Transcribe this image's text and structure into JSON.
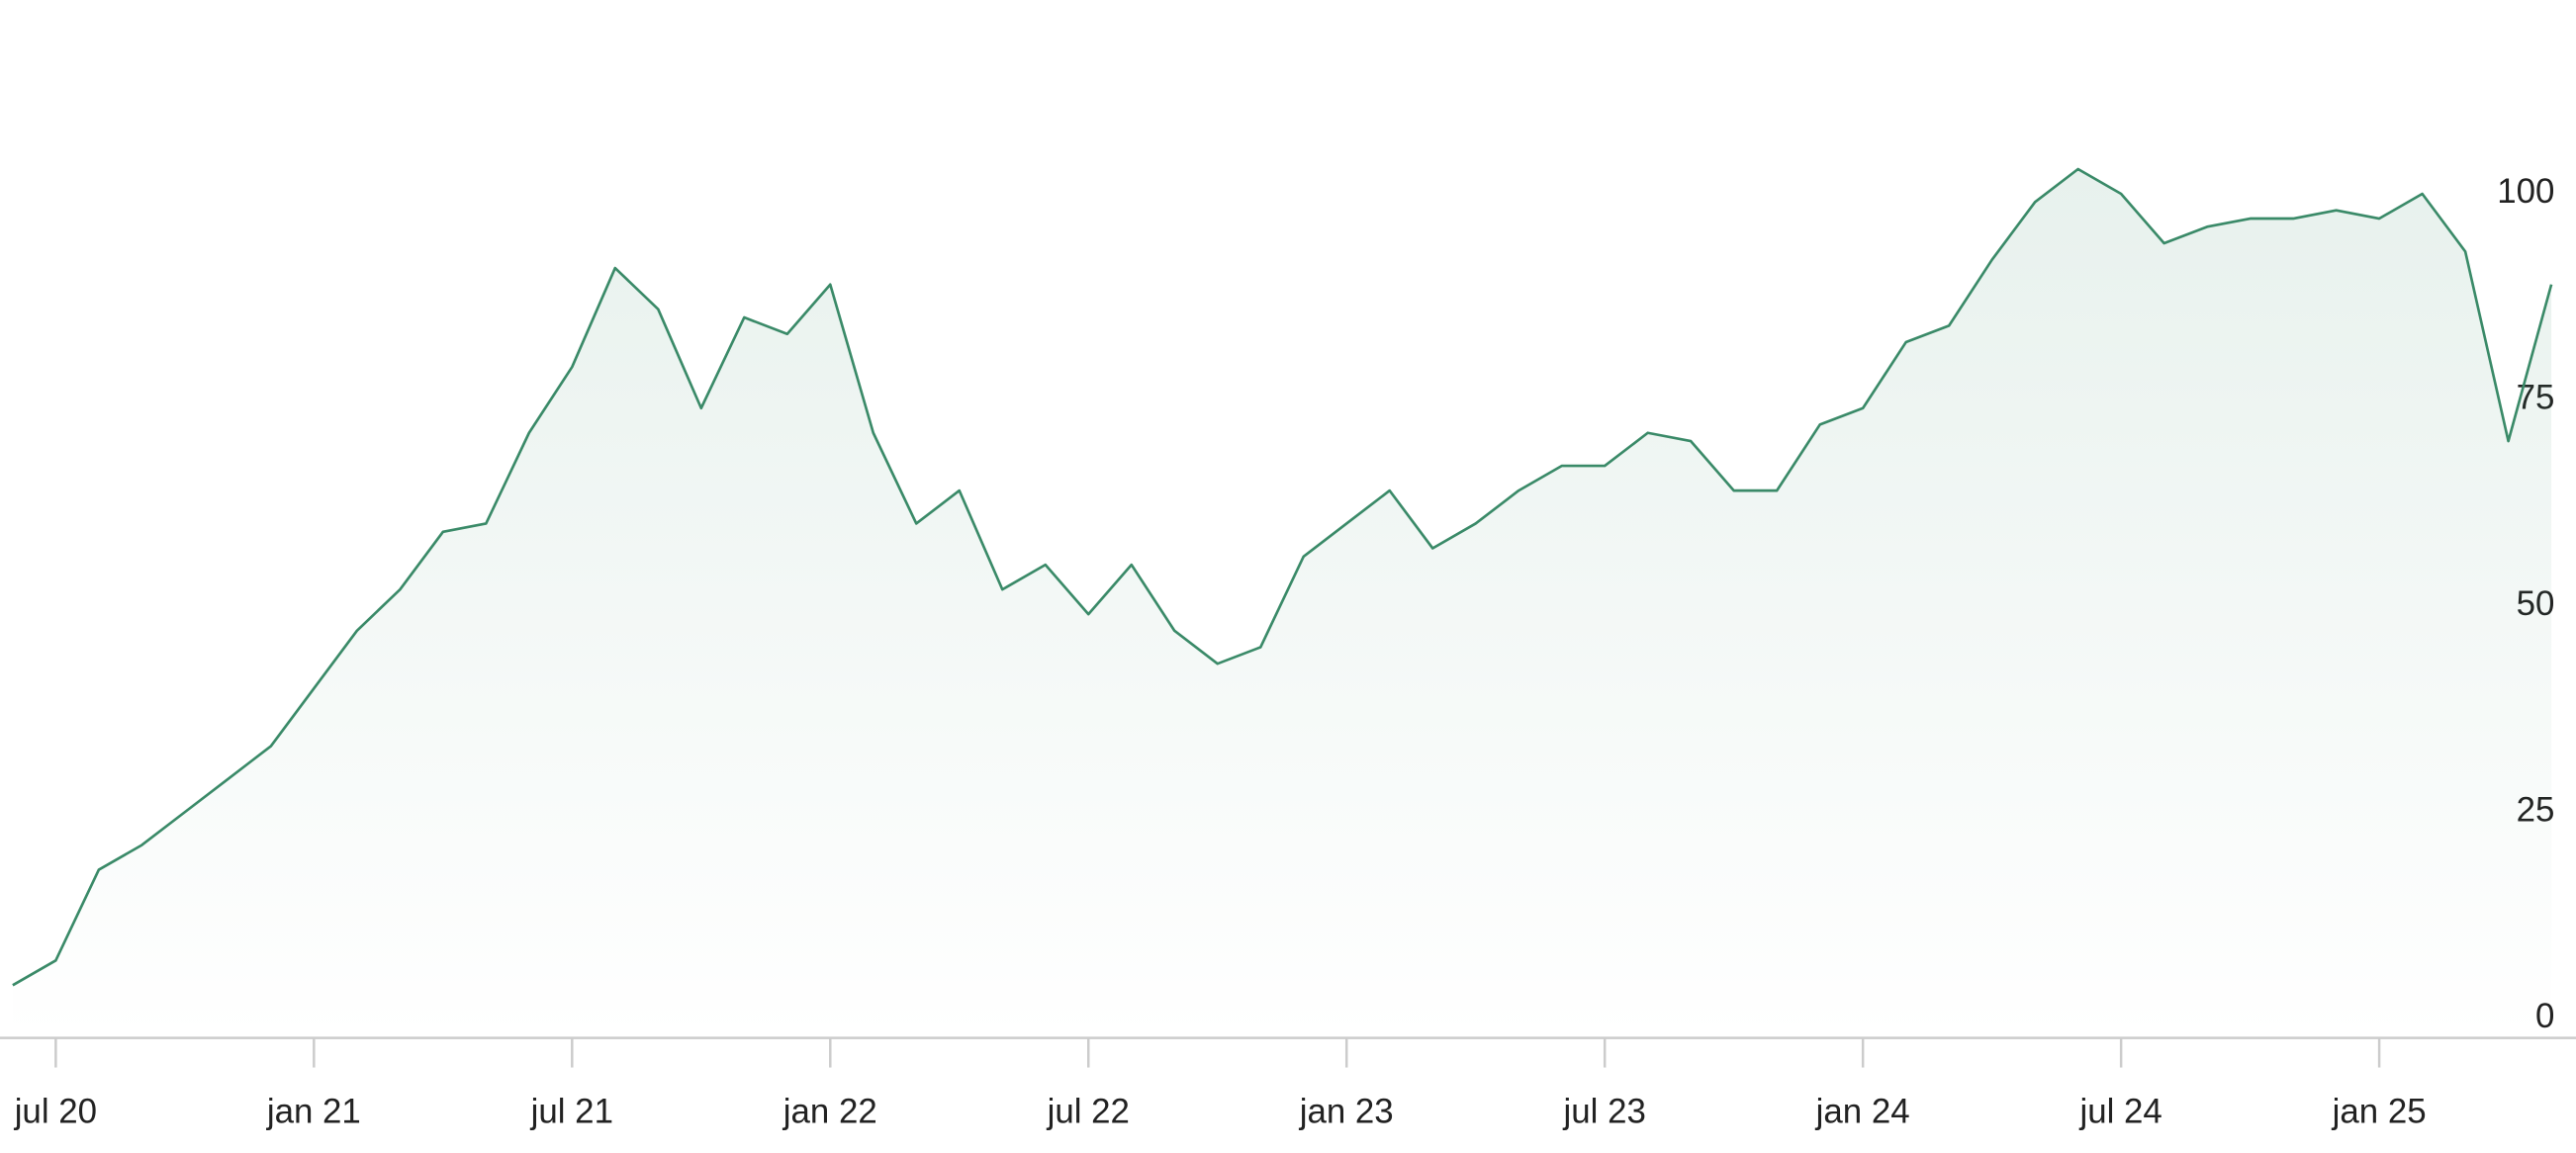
{
  "chart_data": {
    "type": "area",
    "x": [
      "2020-06",
      "2020-07",
      "2020-08",
      "2020-09",
      "2020-10",
      "2020-11",
      "2020-12",
      "2021-01",
      "2021-02",
      "2021-03",
      "2021-04",
      "2021-05",
      "2021-06",
      "2021-07",
      "2021-08",
      "2021-09",
      "2021-10",
      "2021-11",
      "2021-12",
      "2022-01",
      "2022-02",
      "2022-03",
      "2022-04",
      "2022-05",
      "2022-06",
      "2022-07",
      "2022-08",
      "2022-09",
      "2022-10",
      "2022-11",
      "2022-12",
      "2023-01",
      "2023-02",
      "2023-03",
      "2023-04",
      "2023-05",
      "2023-06",
      "2023-07",
      "2023-08",
      "2023-09",
      "2023-10",
      "2023-11",
      "2023-12",
      "2024-01",
      "2024-02",
      "2024-03",
      "2024-04",
      "2024-05",
      "2024-06",
      "2024-07",
      "2024-08",
      "2024-09",
      "2024-10",
      "2024-11",
      "2024-12",
      "2025-01",
      "2025-02",
      "2025-03",
      "2025-04",
      "2025-05"
    ],
    "values": [
      4,
      7,
      18,
      21,
      25,
      29,
      33,
      40,
      47,
      52,
      59,
      60,
      71,
      79,
      91,
      86,
      74,
      85,
      83,
      89,
      71,
      60,
      64,
      52,
      55,
      49,
      55,
      47,
      43,
      45,
      56,
      60,
      64,
      57,
      60,
      64,
      67,
      67,
      71,
      70,
      64,
      64,
      72,
      74,
      82,
      84,
      92,
      99,
      103,
      100,
      94,
      96,
      97,
      97,
      98,
      97,
      100,
      93,
      70,
      89
    ],
    "color": "#3a8a68",
    "xlim": [
      "2020-06",
      "2025-05"
    ],
    "xticks": [
      {
        "value": "2020-07",
        "label": "jul 20"
      },
      {
        "value": "2021-01",
        "label": "jan 21"
      },
      {
        "value": "2021-07",
        "label": "jul 21"
      },
      {
        "value": "2022-01",
        "label": "jan 22"
      },
      {
        "value": "2022-07",
        "label": "jul 22"
      },
      {
        "value": "2023-01",
        "label": "jan 23"
      },
      {
        "value": "2023-07",
        "label": "jul 23"
      },
      {
        "value": "2024-01",
        "label": "jan 24"
      },
      {
        "value": "2024-07",
        "label": "jul 24"
      },
      {
        "value": "2025-01",
        "label": "jan 25"
      }
    ],
    "ylim": [
      -2.4,
      123.5
    ],
    "yticks": [
      0,
      25,
      50,
      75,
      100
    ],
    "grid": false
  }
}
